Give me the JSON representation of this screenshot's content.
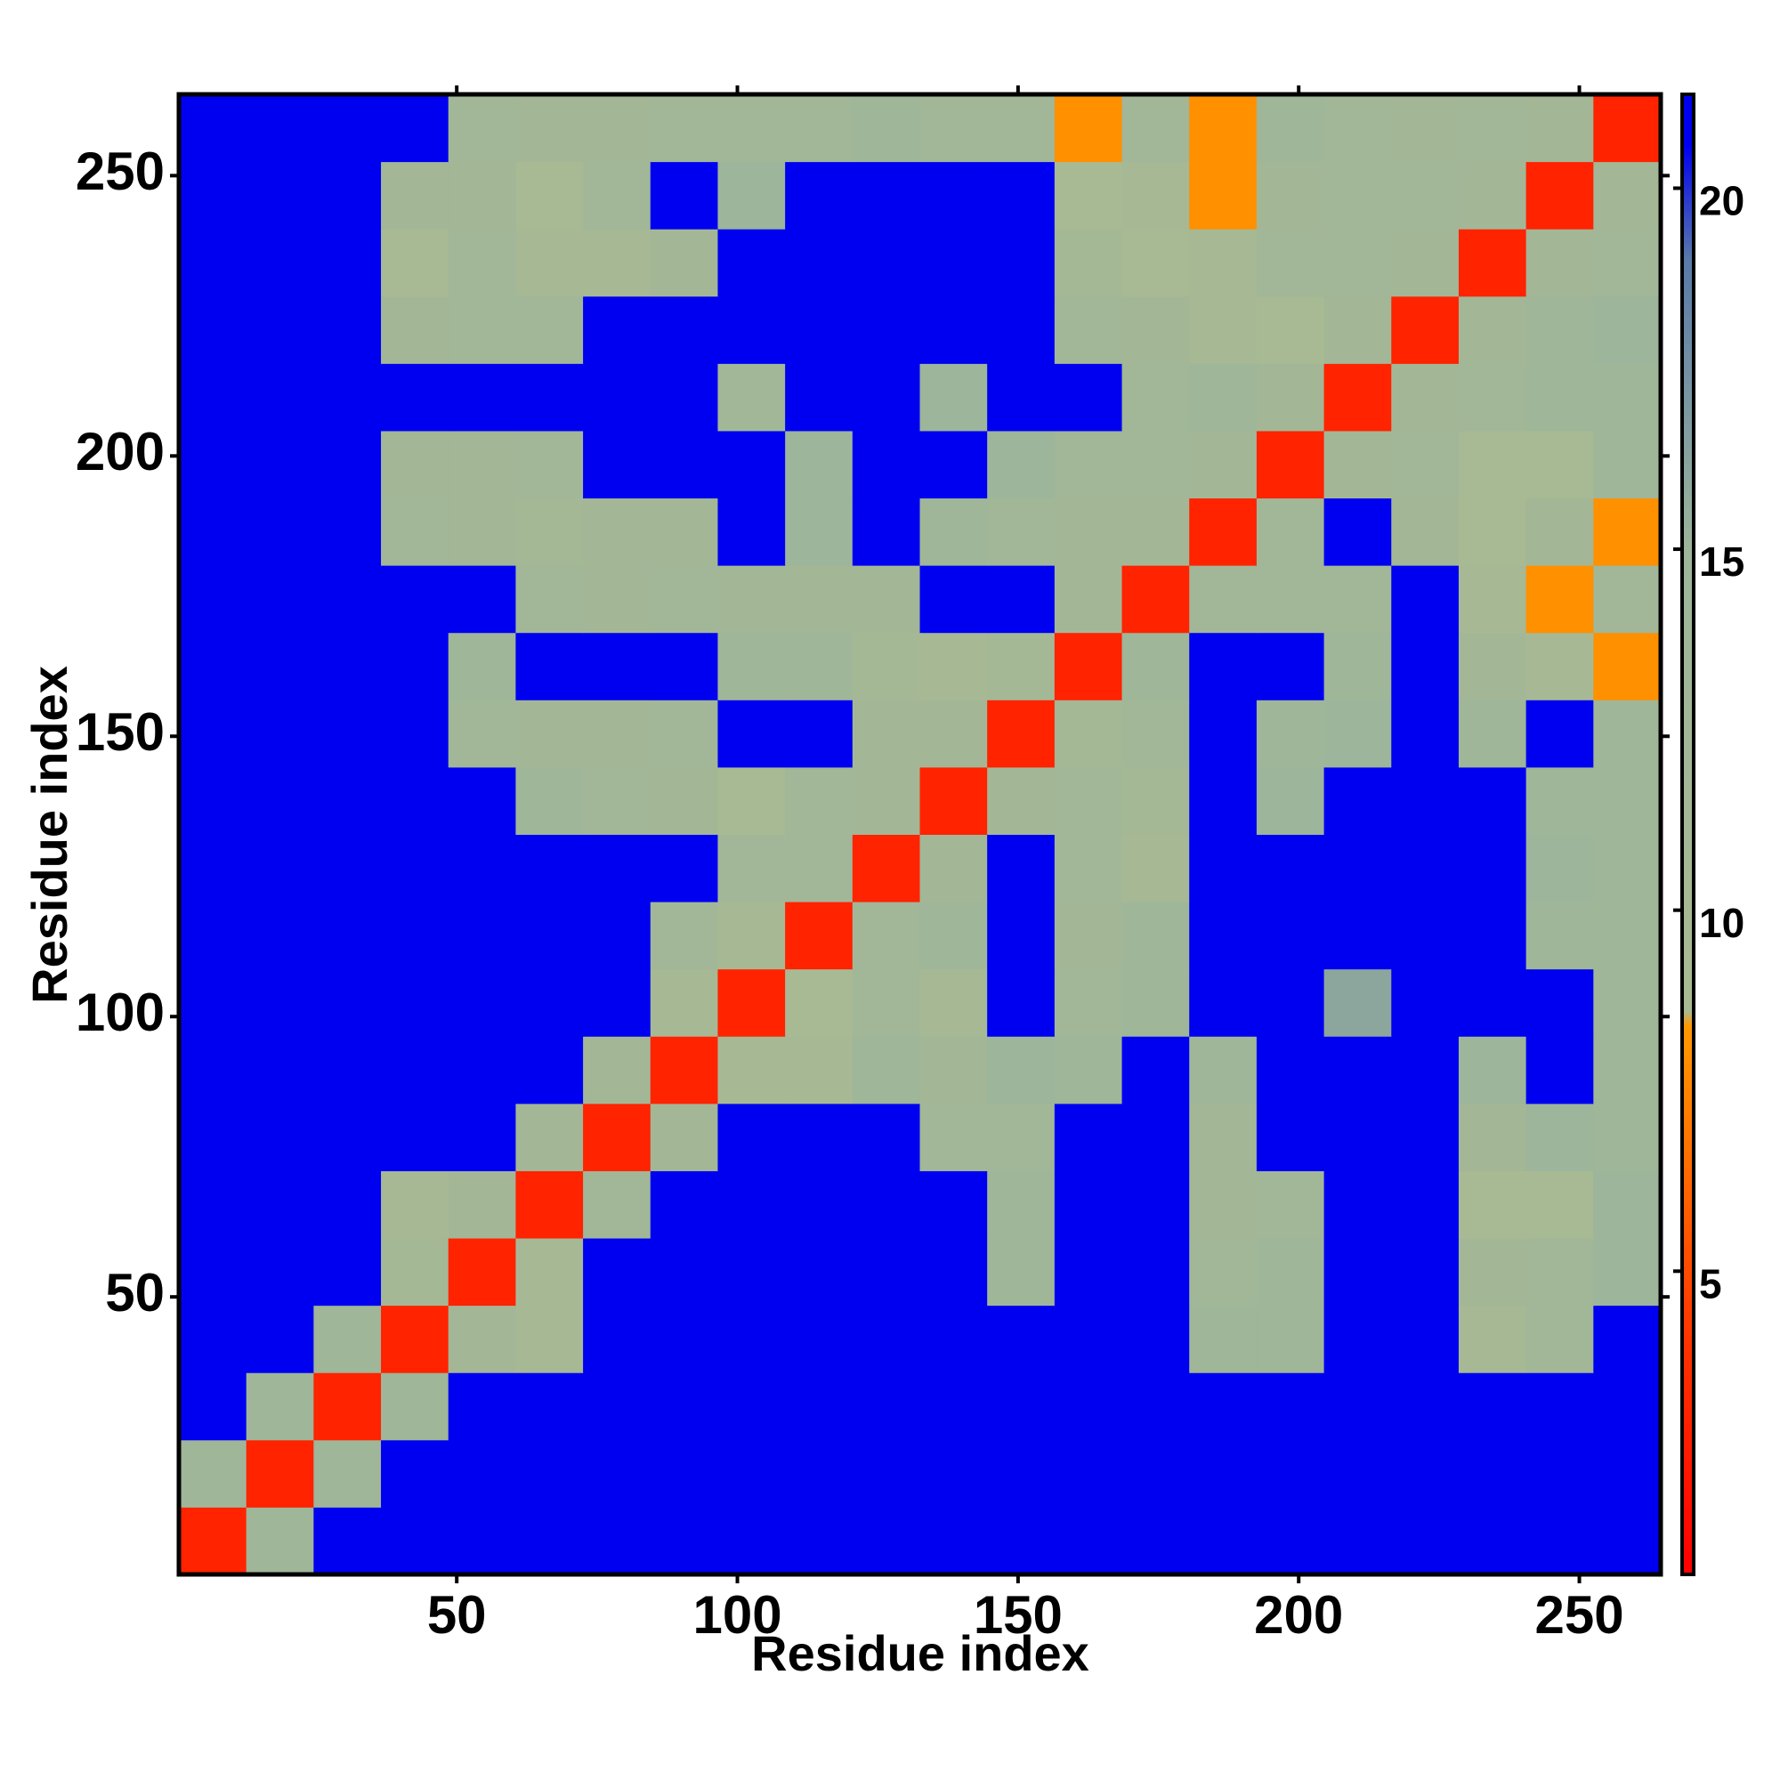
{
  "chart_data": {
    "type": "heatmap",
    "xlabel": "Residue index",
    "ylabel": "Residue index",
    "xbins": [
      0.5,
      12.5,
      24.5,
      36.5,
      48.5,
      60.5,
      72.5,
      84.5,
      96.5,
      108.5,
      120.5,
      132.5,
      144.5,
      156.5,
      168.5,
      180.5,
      192.5,
      204.5,
      216.5,
      228.5,
      240.5,
      252.5,
      264.5
    ],
    "ybins": [
      0.5,
      12.5,
      24.5,
      36.5,
      48.5,
      60.5,
      72.5,
      84.5,
      96.5,
      108.5,
      120.5,
      132.5,
      144.5,
      156.5,
      168.5,
      180.5,
      192.5,
      204.5,
      216.5,
      228.5,
      240.5,
      252.5,
      264.5
    ],
    "xlim": [
      0.5,
      264.5
    ],
    "ylim": [
      0.5,
      264.5
    ],
    "xticks": [
      50,
      100,
      150,
      200,
      250
    ],
    "yticks": [
      50,
      100,
      150,
      200,
      250
    ],
    "zlim": [
      0.8,
      21.3
    ],
    "zticks": [
      5,
      10,
      15,
      20
    ],
    "colorscale": [
      [
        0.8,
        "#ff0000"
      ],
      [
        4,
        "#ff3300"
      ],
      [
        8.4,
        "#ff9900"
      ],
      [
        8.6,
        "#a9ba92"
      ],
      [
        15,
        "#9db59a"
      ],
      [
        19,
        "#5a7aa8"
      ],
      [
        20.6,
        "#0000f0"
      ],
      [
        21.3,
        "#0000f0"
      ]
    ],
    "z": [
      [
        3,
        14,
        21,
        21,
        21,
        21,
        21,
        21,
        21,
        21,
        21,
        21,
        21,
        21,
        21,
        21,
        21,
        21,
        21,
        21,
        21,
        21
      ],
      [
        14,
        3,
        14,
        21,
        21,
        21,
        21,
        21,
        21,
        21,
        21,
        21,
        21,
        21,
        21,
        21,
        21,
        21,
        21,
        21,
        21,
        21
      ],
      [
        21,
        14,
        3,
        14,
        21,
        21,
        21,
        21,
        21,
        21,
        21,
        21,
        21,
        21,
        21,
        21,
        21,
        21,
        21,
        21,
        21,
        21
      ],
      [
        21,
        21,
        14,
        3,
        12,
        10,
        21,
        21,
        21,
        21,
        21,
        21,
        21,
        21,
        21,
        14,
        14,
        21,
        21,
        10,
        13,
        21
      ],
      [
        21,
        21,
        21,
        11,
        3,
        10,
        21,
        21,
        21,
        21,
        21,
        21,
        14,
        21,
        21,
        13,
        14,
        21,
        21,
        12,
        13,
        15
      ],
      [
        21,
        21,
        21,
        10,
        12,
        3,
        13,
        21,
        21,
        21,
        21,
        21,
        14,
        21,
        21,
        12,
        13,
        21,
        21,
        9,
        9,
        15
      ],
      [
        21,
        21,
        21,
        21,
        21,
        12,
        3,
        12,
        21,
        21,
        21,
        13,
        13,
        21,
        21,
        12,
        21,
        21,
        21,
        12,
        15,
        14
      ],
      [
        21,
        21,
        21,
        21,
        21,
        21,
        12,
        3,
        10,
        10,
        14,
        12,
        15,
        14,
        21,
        14,
        21,
        21,
        21,
        15,
        21,
        14
      ],
      [
        21,
        21,
        21,
        21,
        21,
        21,
        21,
        10,
        3,
        9,
        13,
        10,
        21,
        13,
        14,
        21,
        21,
        16,
        21,
        21,
        21,
        14
      ],
      [
        21,
        21,
        21,
        21,
        21,
        21,
        21,
        13,
        10,
        3,
        13,
        14,
        21,
        12,
        14,
        21,
        21,
        21,
        21,
        21,
        14,
        14
      ],
      [
        21,
        21,
        21,
        21,
        21,
        21,
        21,
        21,
        13,
        13,
        3,
        12,
        21,
        13,
        10,
        21,
        21,
        21,
        21,
        21,
        15,
        14
      ],
      [
        21,
        21,
        21,
        21,
        21,
        14,
        13,
        12,
        9,
        13,
        12,
        3,
        12,
        13,
        11,
        21,
        15,
        21,
        21,
        21,
        14,
        14
      ],
      [
        21,
        21,
        21,
        21,
        13,
        12,
        12,
        13,
        21,
        21,
        12,
        12,
        3,
        11,
        13,
        21,
        14,
        15,
        21,
        14,
        21,
        14
      ],
      [
        21,
        21,
        21,
        21,
        14,
        21,
        21,
        21,
        14,
        14,
        11,
        10,
        11,
        3,
        14,
        21,
        21,
        14,
        21,
        12,
        10,
        8
      ],
      [
        21,
        21,
        21,
        21,
        21,
        13,
        12,
        13,
        12,
        12,
        12,
        21,
        21,
        12,
        3,
        13,
        13,
        13,
        21,
        10,
        8,
        13
      ],
      [
        21,
        21,
        21,
        13,
        12,
        11,
        12,
        12,
        21,
        15,
        21,
        14,
        13,
        12,
        12,
        3,
        13,
        21,
        12,
        9,
        12,
        8
      ],
      [
        21,
        21,
        21,
        12,
        12,
        13,
        21,
        21,
        21,
        15,
        21,
        21,
        15,
        13,
        13,
        12,
        3,
        12,
        13,
        9,
        9,
        14
      ],
      [
        21,
        21,
        21,
        21,
        21,
        21,
        21,
        21,
        13,
        21,
        21,
        15,
        21,
        21,
        13,
        14,
        12,
        3,
        12,
        13,
        14,
        14
      ],
      [
        21,
        21,
        21,
        12,
        13,
        13,
        21,
        21,
        21,
        21,
        21,
        21,
        21,
        13,
        12,
        10,
        9,
        12,
        3,
        12,
        14,
        15
      ],
      [
        21,
        21,
        21,
        9,
        13,
        10,
        10,
        12,
        21,
        21,
        21,
        21,
        21,
        11,
        9,
        10,
        13,
        13,
        12,
        3,
        12,
        13
      ],
      [
        21,
        21,
        21,
        12,
        12,
        9,
        13,
        21,
        15,
        21,
        21,
        21,
        21,
        9,
        10,
        8,
        12,
        13,
        13,
        12,
        3,
        12
      ],
      [
        21,
        21,
        21,
        21,
        13,
        12,
        12,
        13,
        13,
        13,
        14,
        13,
        13,
        8,
        13,
        8,
        14,
        13,
        12,
        13,
        12,
        3
      ]
    ]
  }
}
